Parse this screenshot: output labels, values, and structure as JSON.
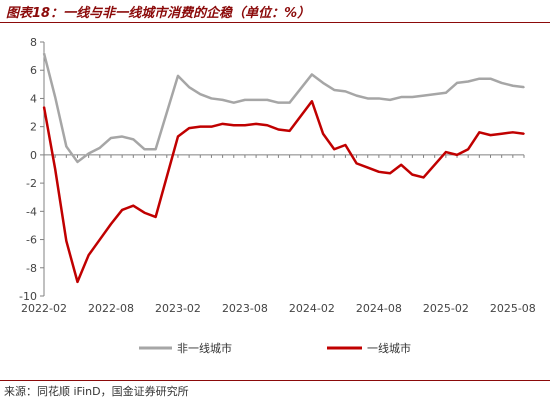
{
  "header": {
    "title": "图表18：一线与非一线城市消费的企稳（单位：%）"
  },
  "footer": {
    "source": "来源：同花顺 iFinD，国金证券研究所"
  },
  "colors": {
    "series_gray": "#a6a6a6",
    "series_red": "#c00000",
    "accent": "#8b0a0a"
  },
  "chart_data": {
    "type": "line",
    "title": "一线与非一线城市消费的企稳（单位：%）",
    "ylim": [
      -10,
      8
    ],
    "yticks": [
      8,
      6,
      4,
      2,
      0,
      -2,
      -4,
      -6,
      -8,
      -10
    ],
    "xlim": [
      "2022-02",
      "2025-09"
    ],
    "xtick_labels": [
      "2022-02",
      "2022-08",
      "2023-02",
      "2023-08",
      "2024-02",
      "2024-08",
      "2025-02",
      "2025-08"
    ],
    "legend_position": "bottom",
    "grid": false,
    "series": [
      {
        "name": "非一线城市",
        "color": "#a6a6a6",
        "points": [
          [
            "2022-02",
            7.2
          ],
          [
            "2022-03",
            4.1
          ],
          [
            "2022-04",
            0.6
          ],
          [
            "2022-05",
            -0.5
          ],
          [
            "2022-06",
            0.1
          ],
          [
            "2022-07",
            0.5
          ],
          [
            "2022-08",
            1.2
          ],
          [
            "2022-09",
            1.3
          ],
          [
            "2022-10",
            1.1
          ],
          [
            "2022-11",
            0.4
          ],
          [
            "2022-12",
            0.4
          ],
          [
            "2023-02",
            5.6
          ],
          [
            "2023-03",
            4.8
          ],
          [
            "2023-04",
            4.3
          ],
          [
            "2023-05",
            4.0
          ],
          [
            "2023-06",
            3.9
          ],
          [
            "2023-07",
            3.7
          ],
          [
            "2023-08",
            3.9
          ],
          [
            "2023-09",
            3.9
          ],
          [
            "2023-10",
            3.9
          ],
          [
            "2023-11",
            3.7
          ],
          [
            "2023-12",
            3.7
          ],
          [
            "2024-02",
            5.7
          ],
          [
            "2024-03",
            5.1
          ],
          [
            "2024-04",
            4.6
          ],
          [
            "2024-05",
            4.5
          ],
          [
            "2024-06",
            4.2
          ],
          [
            "2024-07",
            4.0
          ],
          [
            "2024-08",
            4.0
          ],
          [
            "2024-09",
            3.9
          ],
          [
            "2024-10",
            4.1
          ],
          [
            "2024-11",
            4.1
          ],
          [
            "2024-12",
            4.2
          ],
          [
            "2025-02",
            4.4
          ],
          [
            "2025-03",
            5.1
          ],
          [
            "2025-04",
            5.2
          ],
          [
            "2025-05",
            5.4
          ],
          [
            "2025-06",
            5.4
          ],
          [
            "2025-07",
            5.1
          ],
          [
            "2025-08",
            4.9
          ],
          [
            "2025-09",
            4.8
          ]
        ]
      },
      {
        "name": "一线城市",
        "color": "#c00000",
        "points": [
          [
            "2022-02",
            3.4
          ],
          [
            "2022-03",
            -1.0
          ],
          [
            "2022-04",
            -6.1
          ],
          [
            "2022-05",
            -9.0
          ],
          [
            "2022-06",
            -7.1
          ],
          [
            "2022-07",
            -6.0
          ],
          [
            "2022-08",
            -4.9
          ],
          [
            "2022-09",
            -3.9
          ],
          [
            "2022-10",
            -3.6
          ],
          [
            "2022-11",
            -4.1
          ],
          [
            "2022-12",
            -4.4
          ],
          [
            "2023-02",
            1.3
          ],
          [
            "2023-03",
            1.9
          ],
          [
            "2023-04",
            2.0
          ],
          [
            "2023-05",
            2.0
          ],
          [
            "2023-06",
            2.2
          ],
          [
            "2023-07",
            2.1
          ],
          [
            "2023-08",
            2.1
          ],
          [
            "2023-09",
            2.2
          ],
          [
            "2023-10",
            2.1
          ],
          [
            "2023-11",
            1.8
          ],
          [
            "2023-12",
            1.7
          ],
          [
            "2024-02",
            3.8
          ],
          [
            "2024-03",
            1.5
          ],
          [
            "2024-04",
            0.4
          ],
          [
            "2024-05",
            0.7
          ],
          [
            "2024-06",
            -0.6
          ],
          [
            "2024-07",
            -0.9
          ],
          [
            "2024-08",
            -1.2
          ],
          [
            "2024-09",
            -1.3
          ],
          [
            "2024-10",
            -0.7
          ],
          [
            "2024-11",
            -1.4
          ],
          [
            "2024-12",
            -1.6
          ],
          [
            "2025-02",
            0.2
          ],
          [
            "2025-03",
            0.0
          ],
          [
            "2025-04",
            0.4
          ],
          [
            "2025-05",
            1.6
          ],
          [
            "2025-06",
            1.4
          ],
          [
            "2025-07",
            1.5
          ],
          [
            "2025-08",
            1.6
          ],
          [
            "2025-09",
            1.5
          ]
        ]
      }
    ]
  }
}
